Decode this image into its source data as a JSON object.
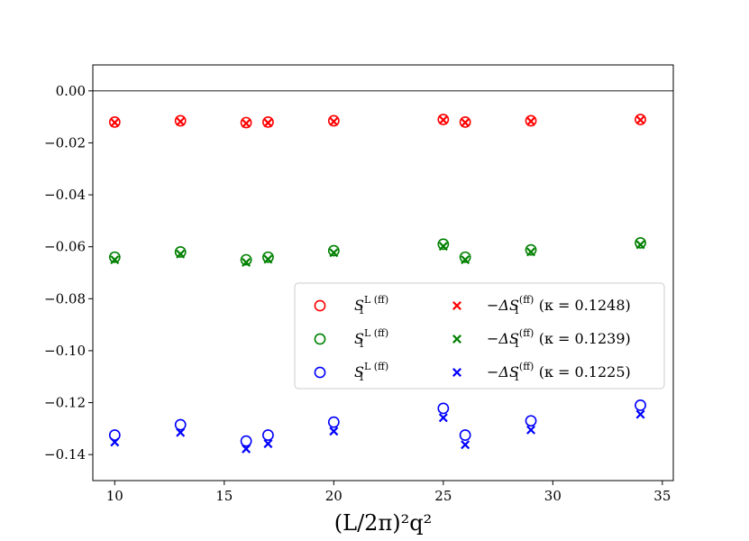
{
  "chart_data": {
    "type": "scatter",
    "title": "",
    "xlabel": "(L/2π)²q²",
    "ylabel": "",
    "xlim": [
      9,
      35.5
    ],
    "ylim": [
      -0.15,
      0.01
    ],
    "xticks": [
      10,
      15,
      20,
      25,
      30,
      35
    ],
    "xtick_labels": [
      "10",
      "15",
      "20",
      "25",
      "30",
      "35"
    ],
    "yticks": [
      0.0,
      -0.02,
      -0.04,
      -0.06,
      -0.08,
      -0.1,
      -0.12,
      -0.14
    ],
    "ytick_labels": [
      "0.00",
      "−0.02",
      "−0.04",
      "−0.06",
      "−0.08",
      "−0.10",
      "−0.12",
      "−0.14"
    ],
    "reference_line": 0.0,
    "grid": false,
    "legend_position": "center-right",
    "x": [
      10,
      13,
      16,
      17,
      20,
      25,
      26,
      29,
      34
    ],
    "series": [
      {
        "name": "S1 L (ff)",
        "kappa": "0.1248",
        "color": "#ff0000",
        "marker": "circle",
        "values": [
          -0.012,
          -0.0115,
          -0.0122,
          -0.012,
          -0.0115,
          -0.011,
          -0.012,
          -0.0115,
          -0.011
        ]
      },
      {
        "name": "−ΔS1 (ff) (κ = 0.1248)",
        "kappa": "0.1248",
        "color": "#ff0000",
        "marker": "x",
        "values": [
          -0.0122,
          -0.0118,
          -0.0125,
          -0.0123,
          -0.0118,
          -0.0112,
          -0.0122,
          -0.0117,
          -0.0112
        ]
      },
      {
        "name": "S1 L (ff)",
        "kappa": "0.1239",
        "color": "#008000",
        "marker": "circle",
        "values": [
          -0.064,
          -0.062,
          -0.065,
          -0.064,
          -0.0615,
          -0.059,
          -0.064,
          -0.0612,
          -0.0585
        ]
      },
      {
        "name": "−ΔS1 (ff) (κ = 0.1239)",
        "kappa": "0.1239",
        "color": "#008000",
        "marker": "x",
        "values": [
          -0.065,
          -0.0628,
          -0.066,
          -0.0648,
          -0.0623,
          -0.0598,
          -0.065,
          -0.062,
          -0.0592
        ]
      },
      {
        "name": "S1 L (ff)",
        "kappa": "0.1225",
        "color": "#0000ff",
        "marker": "circle",
        "values": [
          -0.1325,
          -0.1285,
          -0.1348,
          -0.1325,
          -0.1275,
          -0.1222,
          -0.1325,
          -0.127,
          -0.121
        ]
      },
      {
        "name": "−ΔS1 (ff) (κ = 0.1225)",
        "kappa": "0.1225",
        "color": "#0000ff",
        "marker": "x",
        "values": [
          -0.1352,
          -0.1315,
          -0.1378,
          -0.1358,
          -0.131,
          -0.1258,
          -0.1362,
          -0.1305,
          -0.1245
        ]
      }
    ],
    "legend": {
      "rows": [
        {
          "circle_label": "S",
          "circle_sub": "1",
          "circle_sup": "L (ff)",
          "x_label_pre": "−ΔS",
          "x_sub": "1",
          "x_sup": "(ff)",
          "x_label_post": "(κ = 0.1248)",
          "color": "#ff0000"
        },
        {
          "circle_label": "S",
          "circle_sub": "1",
          "circle_sup": "L (ff)",
          "x_label_pre": "−ΔS",
          "x_sub": "1",
          "x_sup": "(ff)",
          "x_label_post": "(κ = 0.1239)",
          "color": "#008000"
        },
        {
          "circle_label": "S",
          "circle_sub": "1",
          "circle_sup": "L (ff)",
          "x_label_pre": "−ΔS",
          "x_sub": "1",
          "x_sup": "(ff)",
          "x_label_post": "(κ = 0.1225)",
          "color": "#0000ff"
        }
      ]
    }
  }
}
